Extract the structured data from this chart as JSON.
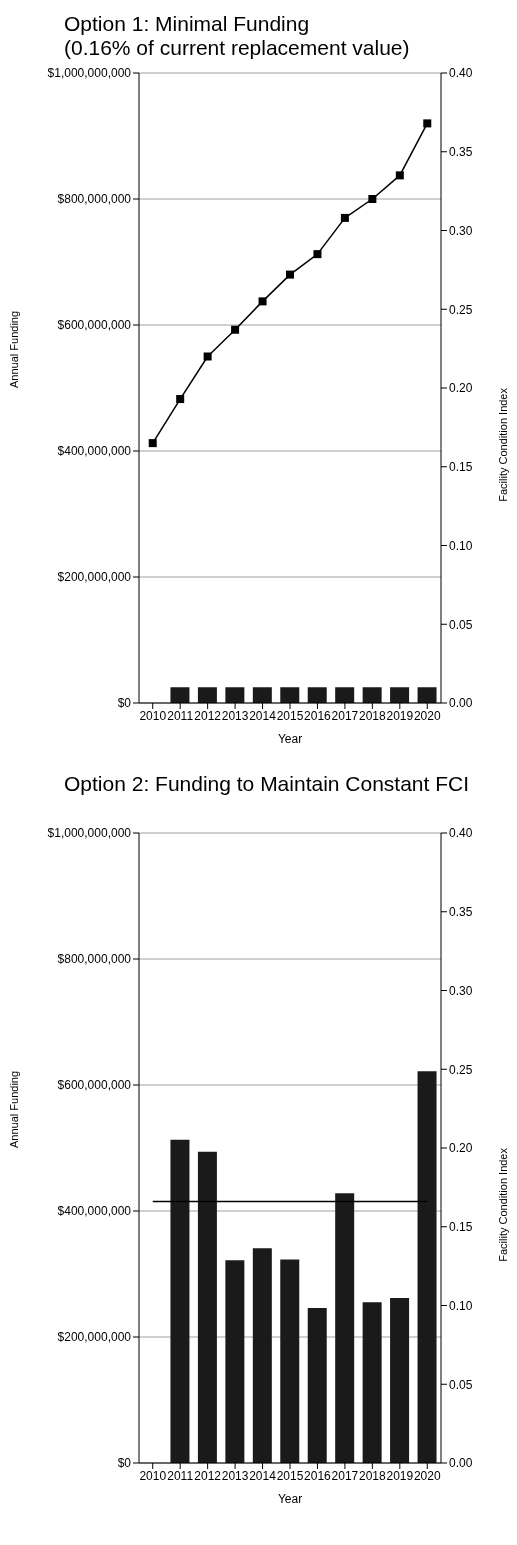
{
  "chart_data": [
    {
      "type": "bar",
      "title": "Option 1: Minimal Funding",
      "subtitle": "(0.16% of current replacement value)",
      "xlabel": "Year",
      "ylabel": "Annual Funding",
      "y2label": "Facility Condition Index",
      "categories": [
        "2010",
        "2011",
        "2012",
        "2013",
        "2014",
        "2015",
        "2016",
        "2017",
        "2018",
        "2019",
        "2020"
      ],
      "series": [
        {
          "color": "#1a1a1a",
          "values": [
            null,
            25000000,
            25000000,
            25000000,
            25000000,
            25000000,
            25000000,
            25000000,
            25000000,
            25000000,
            25000000
          ]
        },
        {
          "type": "line",
          "axis": "y2",
          "color": "#000000",
          "marker": "square",
          "values": [
            0.165,
            0.193,
            0.22,
            0.237,
            0.255,
            0.272,
            0.285,
            0.308,
            0.32,
            0.335,
            0.368
          ]
        }
      ],
      "ylim": [
        0,
        1000000000
      ],
      "yticks": [
        {
          "value": 0,
          "label": "$0"
        },
        {
          "value": 200000000,
          "label": "$200,000,000"
        },
        {
          "value": 400000000,
          "label": "$400,000,000"
        },
        {
          "value": 600000000,
          "label": "$600,000,000"
        },
        {
          "value": 800000000,
          "label": "$800,000,000"
        },
        {
          "value": 1000000000,
          "label": "$1,000,000,000"
        }
      ],
      "y2lim": [
        0,
        0.4
      ],
      "y2ticks": [
        {
          "value": 0,
          "label": "0.00"
        },
        {
          "value": 0.05,
          "label": "0.05"
        },
        {
          "value": 0.1,
          "label": "0.10"
        },
        {
          "value": 0.15,
          "label": "0.15"
        },
        {
          "value": 0.2,
          "label": "0.20"
        },
        {
          "value": 0.25,
          "label": "0.25"
        },
        {
          "value": 0.3,
          "label": "0.30"
        },
        {
          "value": 0.35,
          "label": "0.35"
        },
        {
          "value": 0.4,
          "label": "0.40"
        }
      ],
      "grid": "y"
    },
    {
      "type": "bar",
      "title": "Option 2: Funding to Maintain Constant FCI",
      "xlabel": "Year",
      "ylabel": "Annual Funding",
      "y2label": "Facility Condition Index",
      "categories": [
        "2010",
        "2011",
        "2012",
        "2013",
        "2014",
        "2015",
        "2016",
        "2017",
        "2018",
        "2019",
        "2020"
      ],
      "series": [
        {
          "color": "#1a1a1a",
          "values": [
            null,
            513000000,
            494000000,
            322000000,
            341000000,
            323000000,
            246000000,
            428000000,
            255000000,
            262000000,
            622000000
          ]
        },
        {
          "type": "line",
          "axis": "y2",
          "color": "#000000",
          "marker": "none",
          "values": [
            0.166,
            0.166,
            0.166,
            0.166,
            0.166,
            0.166,
            0.166,
            0.166,
            0.166,
            0.166,
            0.166
          ]
        }
      ],
      "ylim": [
        0,
        1000000000
      ],
      "yticks": [
        {
          "value": 0,
          "label": "$0"
        },
        {
          "value": 200000000,
          "label": "$200,000,000"
        },
        {
          "value": 400000000,
          "label": "$400,000,000"
        },
        {
          "value": 600000000,
          "label": "$600,000,000"
        },
        {
          "value": 800000000,
          "label": "$800,000,000"
        },
        {
          "value": 1000000000,
          "label": "$1,000,000,000"
        }
      ],
      "y2lim": [
        0,
        0.4
      ],
      "y2ticks": [
        {
          "value": 0,
          "label": "0.00"
        },
        {
          "value": 0.05,
          "label": "0.05"
        },
        {
          "value": 0.1,
          "label": "0.10"
        },
        {
          "value": 0.15,
          "label": "0.15"
        },
        {
          "value": 0.2,
          "label": "0.20"
        },
        {
          "value": 0.25,
          "label": "0.25"
        },
        {
          "value": 0.3,
          "label": "0.30"
        },
        {
          "value": 0.35,
          "label": "0.35"
        },
        {
          "value": 0.4,
          "label": "0.40"
        }
      ],
      "grid": "y"
    }
  ]
}
